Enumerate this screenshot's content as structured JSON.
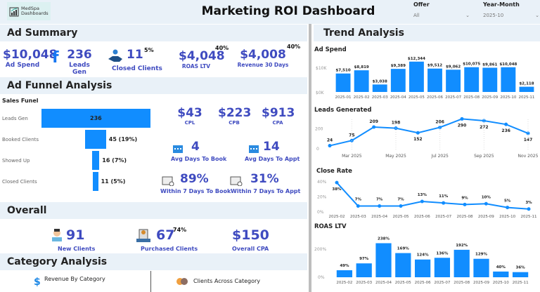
{
  "header": {
    "logo_line1": "MedSpa",
    "logo_line2": "Dashboards",
    "title": "Marketing ROI Dashboard",
    "filters": [
      {
        "label": "Offer",
        "value": "All"
      },
      {
        "label": "Year-Month",
        "value": "2025-10"
      }
    ]
  },
  "colors": {
    "accent": "#118dff",
    "kpi": "#3f4bc0",
    "section_bg": "#e9f1f8"
  },
  "ad_summary": {
    "title": "Ad Summary",
    "ad_spend": {
      "value": "$10,048",
      "label": "Ad Spend"
    },
    "leads_gen": {
      "value": "236",
      "label": "Leads Gen"
    },
    "closed_clients": {
      "value": "11",
      "label": "Closed Clients",
      "pct": "5%"
    },
    "roas_ltv": {
      "value": "$4,048",
      "label": "ROAS LTV",
      "pct": "40%"
    },
    "revenue_30": {
      "value": "$4,008",
      "label": "Revenue 30 Days",
      "pct": "40%"
    }
  },
  "funnel_analysis": {
    "title": "Ad Funnel Analysis",
    "funnel_title": "Sales Funel",
    "stages": [
      {
        "label": "Leads Gen",
        "value": 236,
        "text": "236"
      },
      {
        "label": "Booked Clients",
        "value": 45,
        "text": "45 (19%)"
      },
      {
        "label": "Showed Up",
        "value": 16,
        "text": "16 (7%)"
      },
      {
        "label": "Closed Clients",
        "value": 11,
        "text": "11 (5%)"
      }
    ],
    "cpl": {
      "value": "$43",
      "label": "CPL"
    },
    "cpb": {
      "value": "$223",
      "label": "CPB"
    },
    "cpa": {
      "value": "$913",
      "label": "CPA"
    },
    "avg_days_book": {
      "value": "4",
      "label": "Avg Days To Book"
    },
    "avg_days_appt": {
      "value": "14",
      "label": "Avg Days To Appt"
    },
    "within7_book": {
      "value": "89%",
      "label": "Within 7 Days To Book"
    },
    "within7_appt": {
      "value": "31%",
      "label": "Within 7 Days To Appt"
    }
  },
  "overall": {
    "title": "Overall",
    "new_clients": {
      "value": "91",
      "label": "New Clients"
    },
    "purchased_clients": {
      "value": "67",
      "label": "Purchased Clients",
      "pct": "74%"
    },
    "overall_cpa": {
      "value": "$150",
      "label": "Overall CPA"
    }
  },
  "category": {
    "title": "Category Analysis",
    "revenue_by_category": "Revenue By Category",
    "clients_across_category": "Clients Across Category"
  },
  "trend": {
    "title": "Trend Analysis"
  },
  "chart_data": [
    {
      "type": "bar",
      "title": "Ad Spend",
      "categories": [
        "2025-01",
        "2025-02",
        "2025-03",
        "2025-04",
        "2025-05",
        "2025-06",
        "2025-07",
        "2025-08",
        "2025-09",
        "2025-10",
        "2025-11"
      ],
      "values": [
        7510,
        8819,
        3038,
        9389,
        12344,
        9512,
        9062,
        10075,
        9861,
        10048,
        2118
      ],
      "labels": [
        "$7,510",
        "$8,819",
        "$3,038",
        "$9,389",
        "$12,344",
        "$9,512",
        "$9,062",
        "$10,075",
        "$9,861",
        "$10,048",
        "$2,118"
      ],
      "yticks": [
        "$0K",
        "$10K"
      ],
      "ylim": [
        0,
        14000
      ]
    },
    {
      "type": "line",
      "title": "Leads Generated",
      "categories": [
        "2025-02",
        "2025-03",
        "2025-04",
        "2025-05",
        "2025-06",
        "2025-07",
        "2025-08",
        "2025-09",
        "2025-10",
        "2025-11"
      ],
      "values": [
        24,
        75,
        209,
        198,
        152,
        206,
        290,
        272,
        236,
        147
      ],
      "xticks": [
        "Mar 2025",
        "May 2025",
        "Jul 2025",
        "Sep 2025",
        "Nov 2025"
      ],
      "yticks": [
        "0",
        "200"
      ],
      "ylim": [
        0,
        300
      ]
    },
    {
      "type": "line",
      "title": "Close Rate",
      "categories": [
        "2025-02",
        "2025-03",
        "2025-04",
        "2025-05",
        "2025-06",
        "2025-07",
        "2025-08",
        "2025-09",
        "2025-10",
        "2025-11"
      ],
      "values": [
        38,
        7,
        7,
        7,
        13,
        11,
        9,
        10,
        5,
        3
      ],
      "labels": [
        "38%",
        "7%",
        "7%",
        "7%",
        "13%",
        "11%",
        "9%",
        "10%",
        "5%",
        "3%"
      ],
      "yticks": [
        "0%",
        "20%",
        "40%"
      ],
      "ylim": [
        0,
        40
      ]
    },
    {
      "type": "bar",
      "title": "ROAS LTV",
      "categories": [
        "2025-02",
        "2025-03",
        "2025-04",
        "2025-05",
        "2025-06",
        "2025-07",
        "2025-08",
        "2025-09",
        "2025-10",
        "2025-11"
      ],
      "values": [
        49,
        97,
        238,
        169,
        124,
        136,
        192,
        129,
        40,
        36
      ],
      "labels": [
        "49%",
        "97%",
        "238%",
        "169%",
        "124%",
        "136%",
        "192%",
        "129%",
        "40%",
        "36%"
      ],
      "yticks": [
        "0%",
        "200%"
      ],
      "ylim": [
        0,
        260
      ]
    }
  ]
}
